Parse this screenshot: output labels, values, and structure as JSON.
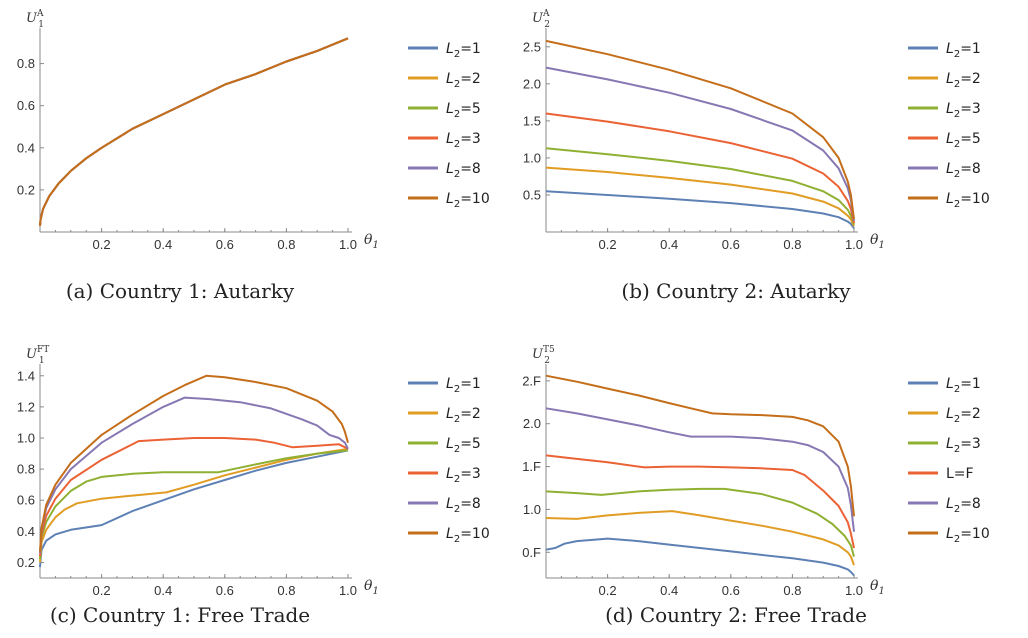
{
  "chart_data": [
    {
      "type": "line",
      "caption": "(a) Country 1: Autarky",
      "ylabel": {
        "main": "U",
        "sub": "1",
        "sup": "A"
      },
      "xlabel": "θ1",
      "xlim": [
        0,
        1
      ],
      "ylim": [
        0,
        0.95
      ],
      "xticks": [
        "0.2",
        "0.4",
        "0.6",
        "0.8",
        "1.0"
      ],
      "yticks": [
        "0.2",
        "0.4",
        "0.6",
        "0.8"
      ],
      "grid": false,
      "legend_position": "right",
      "series": [
        {
          "name": "L2=1",
          "color": "#5E81B5",
          "x": [
            0,
            0.002,
            0.01,
            0.03,
            0.06,
            0.1,
            0.15,
            0.2,
            0.3,
            0.4,
            0.5,
            0.6,
            0.7,
            0.8,
            0.9,
            1.0
          ],
          "y": [
            0.03,
            0.06,
            0.11,
            0.17,
            0.23,
            0.29,
            0.35,
            0.4,
            0.49,
            0.56,
            0.63,
            0.7,
            0.75,
            0.81,
            0.86,
            0.92
          ]
        },
        {
          "name": "L2=2",
          "color": "#E19C24",
          "x": [
            0,
            0.002,
            0.01,
            0.03,
            0.06,
            0.1,
            0.15,
            0.2,
            0.3,
            0.4,
            0.5,
            0.6,
            0.7,
            0.8,
            0.9,
            1.0
          ],
          "y": [
            0.03,
            0.06,
            0.11,
            0.17,
            0.23,
            0.29,
            0.35,
            0.4,
            0.49,
            0.56,
            0.63,
            0.7,
            0.75,
            0.81,
            0.86,
            0.92
          ]
        },
        {
          "name": "L2=5",
          "color": "#8FB032",
          "x": [
            0,
            0.002,
            0.01,
            0.03,
            0.06,
            0.1,
            0.15,
            0.2,
            0.3,
            0.4,
            0.5,
            0.6,
            0.7,
            0.8,
            0.9,
            1.0
          ],
          "y": [
            0.03,
            0.06,
            0.11,
            0.17,
            0.23,
            0.29,
            0.35,
            0.4,
            0.49,
            0.56,
            0.63,
            0.7,
            0.75,
            0.81,
            0.86,
            0.92
          ]
        },
        {
          "name": "L2=3",
          "color": "#EB6235",
          "x": [
            0,
            0.002,
            0.01,
            0.03,
            0.06,
            0.1,
            0.15,
            0.2,
            0.3,
            0.4,
            0.5,
            0.6,
            0.7,
            0.8,
            0.9,
            1.0
          ],
          "y": [
            0.03,
            0.06,
            0.11,
            0.17,
            0.23,
            0.29,
            0.35,
            0.4,
            0.49,
            0.56,
            0.63,
            0.7,
            0.75,
            0.81,
            0.86,
            0.92
          ]
        },
        {
          "name": "L2=8",
          "color": "#8778B3",
          "x": [
            0,
            0.002,
            0.01,
            0.03,
            0.06,
            0.1,
            0.15,
            0.2,
            0.3,
            0.4,
            0.5,
            0.6,
            0.7,
            0.8,
            0.9,
            1.0
          ],
          "y": [
            0.03,
            0.06,
            0.11,
            0.17,
            0.23,
            0.29,
            0.35,
            0.4,
            0.49,
            0.56,
            0.63,
            0.7,
            0.75,
            0.81,
            0.86,
            0.92
          ]
        },
        {
          "name": "L2=10",
          "color": "#C56E1A",
          "x": [
            0,
            0.002,
            0.01,
            0.03,
            0.06,
            0.1,
            0.15,
            0.2,
            0.3,
            0.4,
            0.5,
            0.6,
            0.7,
            0.8,
            0.9,
            1.0
          ],
          "y": [
            0.03,
            0.06,
            0.11,
            0.17,
            0.23,
            0.29,
            0.35,
            0.4,
            0.49,
            0.56,
            0.63,
            0.7,
            0.75,
            0.81,
            0.86,
            0.92
          ]
        }
      ]
    },
    {
      "type": "line",
      "caption": "(b) Country 2: Autarky",
      "ylabel": {
        "main": "U",
        "sub": "2",
        "sup": "A"
      },
      "xlabel": "θ1",
      "xlim": [
        0,
        1
      ],
      "ylim": [
        0,
        2.7
      ],
      "xticks": [
        "0.2",
        "0.4",
        "0.6",
        "0.8",
        "1.0"
      ],
      "yticks": [
        "0.5",
        "1.0",
        "1.5",
        "2.0",
        "2.5"
      ],
      "grid": false,
      "legend_position": "right",
      "series": [
        {
          "name": "L2=1",
          "color": "#5E81B5",
          "x": [
            0,
            0.2,
            0.4,
            0.6,
            0.8,
            0.9,
            0.95,
            0.98,
            0.99,
            1.0
          ],
          "y": [
            0.55,
            0.5,
            0.45,
            0.39,
            0.31,
            0.25,
            0.2,
            0.14,
            0.11,
            0.05
          ]
        },
        {
          "name": "L2=2",
          "color": "#E19C24",
          "x": [
            0,
            0.2,
            0.4,
            0.6,
            0.8,
            0.9,
            0.95,
            0.98,
            0.99,
            1.0
          ],
          "y": [
            0.87,
            0.81,
            0.73,
            0.64,
            0.52,
            0.41,
            0.32,
            0.22,
            0.17,
            0.08
          ]
        },
        {
          "name": "L2=3",
          "color": "#8FB032",
          "x": [
            0,
            0.2,
            0.4,
            0.6,
            0.8,
            0.9,
            0.95,
            0.98,
            0.99,
            1.0
          ],
          "y": [
            1.13,
            1.05,
            0.96,
            0.85,
            0.69,
            0.55,
            0.43,
            0.3,
            0.22,
            0.1
          ]
        },
        {
          "name": "L2=5",
          "color": "#EB6235",
          "x": [
            0,
            0.2,
            0.4,
            0.6,
            0.8,
            0.9,
            0.95,
            0.98,
            0.99,
            1.0
          ],
          "y": [
            1.6,
            1.49,
            1.36,
            1.2,
            0.99,
            0.79,
            0.61,
            0.42,
            0.31,
            0.12
          ]
        },
        {
          "name": "L2=8",
          "color": "#8778B3",
          "x": [
            0,
            0.2,
            0.4,
            0.6,
            0.8,
            0.9,
            0.95,
            0.98,
            0.99,
            1.0
          ],
          "y": [
            2.22,
            2.06,
            1.88,
            1.66,
            1.37,
            1.1,
            0.86,
            0.59,
            0.43,
            0.15
          ]
        },
        {
          "name": "L2=10",
          "color": "#C56E1A",
          "x": [
            0,
            0.2,
            0.4,
            0.6,
            0.8,
            0.9,
            0.95,
            0.98,
            0.99,
            1.0
          ],
          "y": [
            2.58,
            2.4,
            2.19,
            1.94,
            1.6,
            1.28,
            1.0,
            0.68,
            0.5,
            0.17
          ]
        }
      ]
    },
    {
      "type": "line",
      "caption": "(c) Country 1: Free Trade",
      "ylabel": {
        "main": "U",
        "sub": "1",
        "sup": "FT"
      },
      "xlabel": "θ1",
      "xlim": [
        0,
        1
      ],
      "ylim": [
        0.1,
        1.45
      ],
      "xticks": [
        "0.2",
        "0.4",
        "0.6",
        "0.8",
        "1.0"
      ],
      "yticks": [
        "0.2",
        "0.4",
        "0.6",
        "0.8",
        "1.0",
        "1.2",
        "1.4"
      ],
      "grid": false,
      "legend_position": "right",
      "series": [
        {
          "name": "L2=1",
          "color": "#5E81B5",
          "x": [
            0,
            0.005,
            0.02,
            0.05,
            0.1,
            0.2,
            0.3,
            0.4,
            0.5,
            0.6,
            0.7,
            0.8,
            0.9,
            1.0
          ],
          "y": [
            0.17,
            0.28,
            0.34,
            0.38,
            0.41,
            0.44,
            0.53,
            0.6,
            0.67,
            0.73,
            0.79,
            0.84,
            0.88,
            0.92
          ]
        },
        {
          "name": "L2=2",
          "color": "#E19C24",
          "x": [
            0,
            0.005,
            0.02,
            0.05,
            0.08,
            0.12,
            0.2,
            0.3,
            0.41,
            0.5,
            0.6,
            0.7,
            0.8,
            0.9,
            1.0
          ],
          "y": [
            0.2,
            0.33,
            0.41,
            0.49,
            0.54,
            0.58,
            0.61,
            0.63,
            0.65,
            0.7,
            0.76,
            0.81,
            0.86,
            0.9,
            0.93
          ]
        },
        {
          "name": "L2=5",
          "color": "#8FB032",
          "x": [
            0,
            0.005,
            0.02,
            0.05,
            0.1,
            0.15,
            0.2,
            0.3,
            0.4,
            0.5,
            0.58,
            0.7,
            0.8,
            0.9,
            1.0
          ],
          "y": [
            0.22,
            0.36,
            0.46,
            0.56,
            0.66,
            0.72,
            0.75,
            0.77,
            0.78,
            0.78,
            0.78,
            0.83,
            0.87,
            0.9,
            0.92
          ]
        },
        {
          "name": "L2=3",
          "color": "#EB6235",
          "x": [
            0,
            0.005,
            0.02,
            0.05,
            0.1,
            0.2,
            0.32,
            0.4,
            0.5,
            0.6,
            0.7,
            0.76,
            0.82,
            0.9,
            0.97,
            1.0
          ],
          "y": [
            0.24,
            0.38,
            0.5,
            0.61,
            0.73,
            0.86,
            0.98,
            0.99,
            1.0,
            1.0,
            0.99,
            0.97,
            0.94,
            0.95,
            0.96,
            0.93
          ]
        },
        {
          "name": "L2=8",
          "color": "#8778B3",
          "x": [
            0,
            0.005,
            0.02,
            0.05,
            0.1,
            0.2,
            0.3,
            0.4,
            0.47,
            0.55,
            0.65,
            0.75,
            0.85,
            0.9,
            0.94,
            0.97,
            0.99,
            1.0
          ],
          "y": [
            0.26,
            0.41,
            0.55,
            0.67,
            0.8,
            0.97,
            1.09,
            1.2,
            1.26,
            1.25,
            1.23,
            1.19,
            1.12,
            1.08,
            1.02,
            1.0,
            0.97,
            0.93
          ]
        },
        {
          "name": "L2=10",
          "color": "#C56E1A",
          "x": [
            0,
            0.005,
            0.02,
            0.05,
            0.1,
            0.2,
            0.3,
            0.4,
            0.47,
            0.54,
            0.6,
            0.7,
            0.8,
            0.9,
            0.95,
            0.98,
            0.99,
            1.0
          ],
          "y": [
            0.27,
            0.42,
            0.57,
            0.7,
            0.84,
            1.02,
            1.15,
            1.27,
            1.34,
            1.4,
            1.39,
            1.36,
            1.32,
            1.24,
            1.17,
            1.09,
            1.04,
            0.97
          ]
        }
      ]
    },
    {
      "type": "line",
      "caption": "(d) Country 2: Free Trade",
      "ylabel": {
        "main": "U",
        "sub": "2",
        "sup": "T5"
      },
      "xlabel": "θ1",
      "xlim": [
        0,
        1
      ],
      "ylim": [
        0.2,
        2.65
      ],
      "xticks": [
        "0.2",
        "0.4",
        "0.6",
        "0.8",
        "1.0"
      ],
      "yticks": [
        "0.F",
        "1.0",
        "1.F",
        "2.0",
        "2.F"
      ],
      "yticks_values": [
        0.5,
        1.0,
        1.5,
        2.0,
        2.5
      ],
      "grid": false,
      "legend_position": "right",
      "series": [
        {
          "name": "L2=1",
          "color": "#5E81B5",
          "x": [
            0,
            0.03,
            0.06,
            0.1,
            0.2,
            0.3,
            0.4,
            0.5,
            0.6,
            0.7,
            0.8,
            0.9,
            0.95,
            0.98,
            0.99,
            1.0
          ],
          "y": [
            0.53,
            0.55,
            0.6,
            0.63,
            0.66,
            0.63,
            0.59,
            0.55,
            0.51,
            0.47,
            0.43,
            0.38,
            0.34,
            0.3,
            0.27,
            0.23
          ]
        },
        {
          "name": "L2=2",
          "color": "#E19C24",
          "x": [
            0,
            0.1,
            0.2,
            0.3,
            0.41,
            0.5,
            0.6,
            0.7,
            0.8,
            0.9,
            0.95,
            0.98,
            0.99,
            1.0
          ],
          "y": [
            0.9,
            0.89,
            0.93,
            0.96,
            0.98,
            0.93,
            0.87,
            0.81,
            0.74,
            0.65,
            0.58,
            0.5,
            0.45,
            0.35
          ]
        },
        {
          "name": "L2=3",
          "color": "#8FB032",
          "x": [
            0,
            0.1,
            0.18,
            0.3,
            0.4,
            0.5,
            0.58,
            0.7,
            0.8,
            0.88,
            0.93,
            0.97,
            0.99,
            1.0
          ],
          "y": [
            1.21,
            1.19,
            1.17,
            1.21,
            1.23,
            1.24,
            1.24,
            1.18,
            1.08,
            0.95,
            0.83,
            0.69,
            0.58,
            0.45
          ]
        },
        {
          "name": "L=F",
          "color": "#EB6235",
          "x": [
            0,
            0.1,
            0.2,
            0.32,
            0.4,
            0.5,
            0.6,
            0.7,
            0.8,
            0.84,
            0.9,
            0.95,
            0.98,
            0.99,
            1.0
          ],
          "y": [
            1.63,
            1.59,
            1.55,
            1.49,
            1.5,
            1.5,
            1.49,
            1.48,
            1.46,
            1.4,
            1.22,
            1.04,
            0.85,
            0.72,
            0.55
          ]
        },
        {
          "name": "L2=8",
          "color": "#8778B3",
          "x": [
            0,
            0.1,
            0.2,
            0.3,
            0.4,
            0.47,
            0.55,
            0.6,
            0.7,
            0.8,
            0.85,
            0.9,
            0.95,
            0.98,
            0.99,
            1.0
          ],
          "y": [
            2.18,
            2.12,
            2.05,
            1.98,
            1.9,
            1.85,
            1.85,
            1.85,
            1.83,
            1.79,
            1.75,
            1.67,
            1.5,
            1.25,
            1.05,
            0.74
          ]
        },
        {
          "name": "L2=10",
          "color": "#C56E1A",
          "x": [
            0,
            0.1,
            0.2,
            0.3,
            0.4,
            0.47,
            0.54,
            0.6,
            0.7,
            0.8,
            0.85,
            0.9,
            0.95,
            0.98,
            0.99,
            1.0
          ],
          "y": [
            2.56,
            2.49,
            2.41,
            2.33,
            2.24,
            2.18,
            2.12,
            2.11,
            2.1,
            2.08,
            2.04,
            1.97,
            1.79,
            1.5,
            1.27,
            0.92
          ]
        }
      ]
    }
  ]
}
